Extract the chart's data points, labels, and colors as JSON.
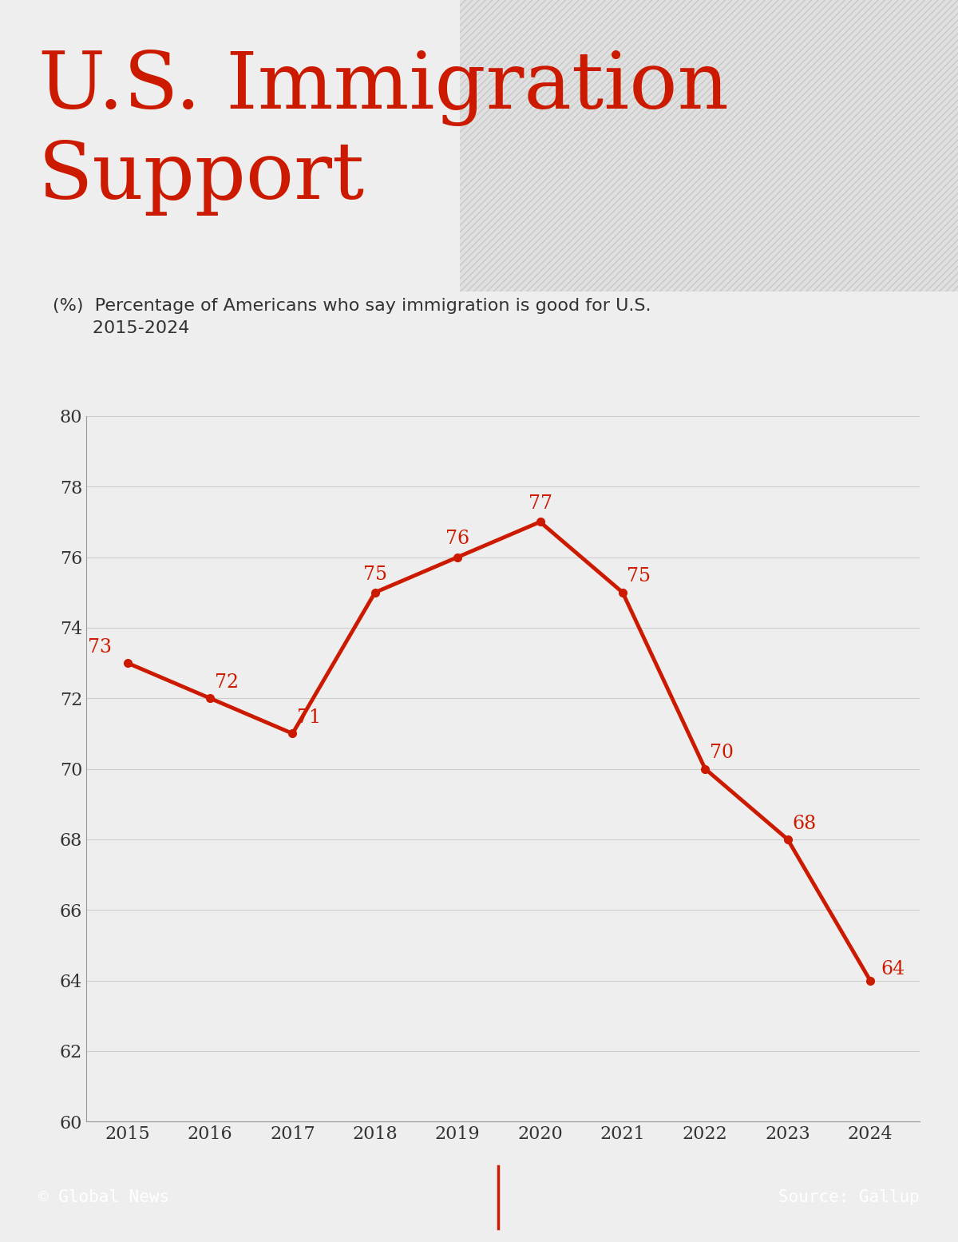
{
  "title_line1": "U.S. Immigration",
  "title_line2": "Support",
  "title_color": "#cc1a00",
  "subtitle_line1": "(%)  Percentage of Americans who say immigration is good for U.S.",
  "subtitle_line2": "       2015-2024",
  "years": [
    2015,
    2016,
    2017,
    2018,
    2019,
    2020,
    2021,
    2022,
    2023,
    2024
  ],
  "values": [
    73,
    72,
    71,
    75,
    76,
    77,
    75,
    70,
    68,
    64
  ],
  "line_color": "#cc1a00",
  "marker_color": "#cc1a00",
  "label_color": "#cc1a00",
  "ylim_min": 60,
  "ylim_max": 80,
  "yticks": [
    60,
    62,
    64,
    66,
    68,
    70,
    72,
    74,
    76,
    78,
    80
  ],
  "background_color": "#eeeeee",
  "chart_bg_color": "#eeeeee",
  "header_bg_color": "#ffffff",
  "footer_bg_color": "#1a1a1a",
  "footer_text_left": "© Global News",
  "footer_text_right": "Source: Gallup",
  "footer_text_color": "#ffffff",
  "footer_divider_color": "#cc1a00",
  "grid_color": "#cccccc",
  "axis_label_color": "#333333",
  "title_fontsize": 72,
  "subtitle_fontsize": 16,
  "label_fontsize": 17,
  "ytick_fontsize": 16,
  "xtick_fontsize": 16,
  "footer_fontsize": 15
}
